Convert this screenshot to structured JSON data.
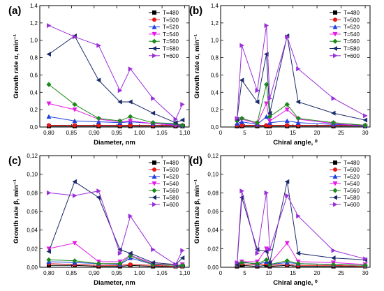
{
  "series_styles": [
    {
      "name": "T=480",
      "color": "#000000",
      "marker": "square"
    },
    {
      "name": "T=500",
      "color": "#e41a1c",
      "marker": "circle"
    },
    {
      "name": "T=520",
      "color": "#1f3fe0",
      "marker": "triangle-up"
    },
    {
      "name": "T=540",
      "color": "#e619e6",
      "marker": "triangle-down"
    },
    {
      "name": "T=560",
      "color": "#1a8a1a",
      "marker": "diamond"
    },
    {
      "name": "T=580",
      "color": "#1b2a6b",
      "marker": "triangle-left"
    },
    {
      "name": "T=600",
      "color": "#9b30d9",
      "marker": "triangle-right"
    }
  ],
  "chart_data": [
    {
      "type": "line",
      "panel_label": "(a)",
      "xlabel": "Diameter, nm",
      "ylabel": "Growth rate α, min⁻¹",
      "xlim": [
        0.78,
        1.11
      ],
      "ylim": [
        0,
        1.4
      ],
      "xticks": [
        0.8,
        0.85,
        0.9,
        0.95,
        1.0,
        1.05,
        1.1
      ],
      "xtick_labels": [
        "0,80",
        "0,85",
        "0,90",
        "0,95",
        "1,00",
        "1,05",
        "1,10"
      ],
      "yticks": [
        0,
        0.2,
        0.4,
        0.6,
        0.8,
        1.0,
        1.2,
        1.4
      ],
      "ytick_labels": [
        "0,0",
        "0,2",
        "0,4",
        "0,6",
        "0,8",
        "1,0",
        "1,2",
        "1,4"
      ],
      "legend_position": "top-right",
      "x": [
        0.8,
        0.857,
        0.91,
        0.957,
        0.98,
        1.03,
        1.08,
        1.095
      ],
      "series": [
        {
          "name": "T=480",
          "values": [
            0.01,
            0.01,
            0.01,
            0.01,
            0.01,
            0.01,
            0.01,
            0.01
          ]
        },
        {
          "name": "T=500",
          "values": [
            0.02,
            0.02,
            0.02,
            0.02,
            0.02,
            0.02,
            0.02,
            0.02
          ]
        },
        {
          "name": "T=520",
          "values": [
            0.12,
            0.07,
            0.06,
            0.05,
            0.06,
            0.04,
            0.03,
            0.02
          ]
        },
        {
          "name": "T=540",
          "values": [
            0.27,
            0.2,
            0.09,
            0.06,
            0.07,
            0.04,
            0.02,
            0.01
          ]
        },
        {
          "name": "T=560",
          "values": [
            0.49,
            0.26,
            0.1,
            0.07,
            0.12,
            0.05,
            0.04,
            0.02
          ]
        },
        {
          "name": "T=580",
          "values": [
            0.84,
            1.05,
            0.54,
            0.29,
            0.29,
            0.16,
            0.05,
            0.08
          ]
        },
        {
          "name": "T=600",
          "values": [
            1.17,
            1.04,
            0.94,
            0.42,
            0.67,
            0.33,
            0.09,
            0.26
          ]
        }
      ]
    },
    {
      "type": "line",
      "panel_label": "(b)",
      "xlabel": "Chiral angle, ⁰",
      "ylabel": "Growth rate α, min⁻¹",
      "xlim": [
        0,
        31
      ],
      "ylim": [
        0,
        1.4
      ],
      "xticks": [
        0,
        5,
        10,
        15,
        20,
        25,
        30
      ],
      "xtick_labels": [
        "0",
        "5",
        "10",
        "15",
        "20",
        "25",
        "30"
      ],
      "yticks": [
        0,
        0.2,
        0.4,
        0.6,
        0.8,
        1.0,
        1.2,
        1.4
      ],
      "ytick_labels": [
        "0,0",
        "0,2",
        "0,4",
        "0,6",
        "0,8",
        "1,0",
        "1,2",
        "1,4"
      ],
      "legend_position": "top-right",
      "x": [
        3.4,
        4.4,
        7.6,
        9.5,
        10.2,
        13.8,
        16.1,
        23.4,
        30.0
      ],
      "series": [
        {
          "name": "T=480",
          "values": [
            0.01,
            0.01,
            0.01,
            0.01,
            0.01,
            0.01,
            0.01,
            0.01,
            0.01
          ]
        },
        {
          "name": "T=500",
          "values": [
            0.02,
            0.02,
            0.02,
            0.02,
            0.02,
            0.02,
            0.02,
            0.02,
            0.02
          ]
        },
        {
          "name": "T=520",
          "values": [
            0.04,
            0.06,
            0.03,
            0.12,
            0.05,
            0.07,
            0.05,
            0.03,
            0.02
          ]
        },
        {
          "name": "T=540",
          "values": [
            0.06,
            0.09,
            0.04,
            0.27,
            0.07,
            0.2,
            0.09,
            0.04,
            0.01
          ]
        },
        {
          "name": "T=560",
          "values": [
            0.07,
            0.1,
            0.05,
            0.49,
            0.12,
            0.26,
            0.1,
            0.05,
            0.02
          ]
        },
        {
          "name": "T=580",
          "values": [
            0.09,
            0.54,
            0.29,
            0.84,
            0.16,
            1.05,
            0.29,
            0.16,
            0.08
          ]
        },
        {
          "name": "T=600",
          "values": [
            0.1,
            0.94,
            0.42,
            1.17,
            0.33,
            1.04,
            0.67,
            0.33,
            0.13
          ]
        }
      ]
    },
    {
      "type": "line",
      "panel_label": "(c)",
      "xlabel": "Diameter, nm",
      "ylabel": "Growth rate β, min⁻¹",
      "xlim": [
        0.78,
        1.11
      ],
      "ylim": [
        0,
        0.12
      ],
      "xticks": [
        0.8,
        0.85,
        0.9,
        0.95,
        1.0,
        1.05,
        1.1
      ],
      "xtick_labels": [
        "0,80",
        "0,85",
        "0,90",
        "0,95",
        "1,00",
        "1,05",
        "1,10"
      ],
      "yticks": [
        0,
        0.02,
        0.04,
        0.06,
        0.08,
        0.1,
        0.12
      ],
      "ytick_labels": [
        "0,00",
        "0,02",
        "0,04",
        "0,06",
        "0,08",
        "0,10",
        "0,12"
      ],
      "legend_position": "top-right",
      "x": [
        0.8,
        0.857,
        0.91,
        0.957,
        0.98,
        1.03,
        1.08,
        1.095
      ],
      "series": [
        {
          "name": "T=480",
          "values": [
            0.002,
            0.002,
            0.001,
            0.001,
            0.002,
            0.001,
            0.001,
            0.001
          ]
        },
        {
          "name": "T=500",
          "values": [
            0.004,
            0.003,
            0.002,
            0.002,
            0.003,
            0.002,
            0.001,
            0.001
          ]
        },
        {
          "name": "T=520",
          "values": [
            0.006,
            0.005,
            0.004,
            0.003,
            0.01,
            0.003,
            0.002,
            0.002
          ]
        },
        {
          "name": "T=540",
          "values": [
            0.02,
            0.026,
            0.006,
            0.006,
            0.013,
            0.004,
            0.002,
            0.003
          ]
        },
        {
          "name": "T=560",
          "values": [
            0.008,
            0.007,
            0.004,
            0.004,
            0.012,
            0.003,
            0.002,
            0.002
          ]
        },
        {
          "name": "T=580",
          "values": [
            0.017,
            0.092,
            0.075,
            0.019,
            0.015,
            0.005,
            0.003,
            0.01
          ]
        },
        {
          "name": "T=600",
          "values": [
            0.08,
            0.077,
            0.082,
            0.015,
            0.055,
            0.019,
            0.003,
            0.018
          ]
        }
      ]
    },
    {
      "type": "line",
      "panel_label": "(d)",
      "xlabel": "Chiral angle, ⁰",
      "ylabel": "Growth rate β, min⁻¹",
      "xlim": [
        0,
        31
      ],
      "ylim": [
        0,
        0.12
      ],
      "xticks": [
        0,
        5,
        10,
        15,
        20,
        25,
        30
      ],
      "xtick_labels": [
        "0",
        "5",
        "10",
        "15",
        "20",
        "25",
        "30"
      ],
      "yticks": [
        0,
        0.02,
        0.04,
        0.06,
        0.08,
        0.1,
        0.12
      ],
      "ytick_labels": [
        "0,00",
        "0,02",
        "0,04",
        "0,06",
        "0,08",
        "0,10",
        "0,12"
      ],
      "legend_position": "top-right",
      "x": [
        3.4,
        4.4,
        7.6,
        9.5,
        10.2,
        13.8,
        16.1,
        23.4,
        30.0
      ],
      "series": [
        {
          "name": "T=480",
          "values": [
            0.001,
            0.002,
            0.001,
            0.002,
            0.001,
            0.002,
            0.001,
            0.001,
            0.001
          ]
        },
        {
          "name": "T=500",
          "values": [
            0.002,
            0.004,
            0.002,
            0.004,
            0.002,
            0.003,
            0.002,
            0.002,
            0.001
          ]
        },
        {
          "name": "T=520",
          "values": [
            0.003,
            0.006,
            0.003,
            0.006,
            0.003,
            0.005,
            0.004,
            0.003,
            0.002
          ]
        },
        {
          "name": "T=540",
          "values": [
            0.004,
            0.006,
            0.006,
            0.02,
            0.004,
            0.026,
            0.006,
            0.005,
            0.003
          ]
        },
        {
          "name": "T=560",
          "values": [
            0.003,
            0.005,
            0.004,
            0.008,
            0.003,
            0.007,
            0.004,
            0.003,
            0.002
          ]
        },
        {
          "name": "T=580",
          "values": [
            0.003,
            0.075,
            0.019,
            0.017,
            0.005,
            0.092,
            0.015,
            0.01,
            0.008
          ]
        },
        {
          "name": "T=600",
          "values": [
            0.005,
            0.082,
            0.015,
            0.08,
            0.019,
            0.077,
            0.055,
            0.018,
            0.009
          ]
        }
      ]
    }
  ]
}
